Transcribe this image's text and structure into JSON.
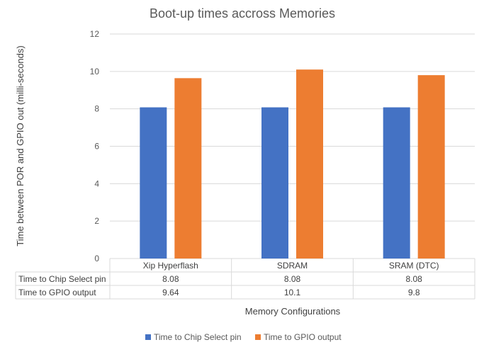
{
  "chart_data": {
    "type": "bar",
    "title": "Boot-up times accross Memories",
    "xlabel": "Memory Configurations",
    "ylabel": "Time between POR and GPIO out (milli-seconds)",
    "categories": [
      "Xip Hyperflash",
      "SDRAM",
      "SRAM (DTC)"
    ],
    "series": [
      {
        "name": "Time to Chip Select pin",
        "values": [
          8.08,
          8.08,
          8.08
        ],
        "labels": [
          "8.08",
          "8.08",
          "8.08"
        ],
        "color": "#4472C4"
      },
      {
        "name": "Time to GPIO output",
        "values": [
          9.64,
          10.1,
          9.8
        ],
        "labels": [
          "9.64",
          "10.1",
          "9.8"
        ],
        "color": "#ED7D31"
      }
    ],
    "ylim": [
      0,
      12
    ],
    "yticks": [
      0,
      2,
      4,
      6,
      8,
      10,
      12
    ],
    "grid": true,
    "data_table": true,
    "legend": "bottom"
  }
}
